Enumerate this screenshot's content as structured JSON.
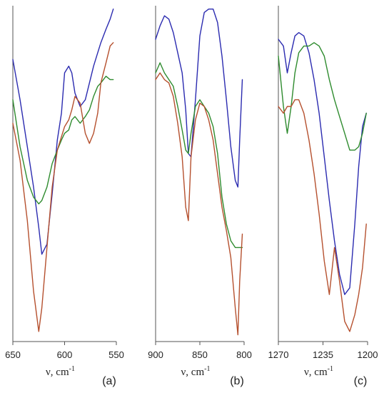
{
  "chart_data": [
    {
      "type": "line",
      "panel_label": "(a)",
      "xlabel": "ν, cm",
      "xlabel_sup": "-1",
      "xlim": [
        650,
        550
      ],
      "ylim": [
        0,
        1
      ],
      "xticks": [
        650,
        600,
        550
      ],
      "series": [
        {
          "color": "#2b2bb0",
          "x": [
            650,
            643,
            636,
            630,
            625,
            622,
            617,
            612,
            607,
            603,
            600,
            596,
            593,
            590,
            585,
            580,
            576,
            572,
            568,
            565,
            560,
            556,
            553
          ],
          "y": [
            0.84,
            0.72,
            0.58,
            0.46,
            0.34,
            0.26,
            0.29,
            0.44,
            0.6,
            0.68,
            0.8,
            0.82,
            0.8,
            0.74,
            0.7,
            0.72,
            0.77,
            0.82,
            0.86,
            0.89,
            0.93,
            0.96,
            0.99
          ]
        },
        {
          "color": "#2e8b2e",
          "x": [
            650,
            643,
            636,
            630,
            625,
            622,
            617,
            612,
            607,
            603,
            600,
            596,
            593,
            590,
            585,
            580,
            576,
            572,
            568,
            565,
            560,
            556,
            553
          ],
          "y": [
            0.72,
            0.58,
            0.48,
            0.43,
            0.41,
            0.42,
            0.46,
            0.53,
            0.57,
            0.6,
            0.62,
            0.63,
            0.66,
            0.67,
            0.65,
            0.67,
            0.69,
            0.73,
            0.76,
            0.77,
            0.79,
            0.78,
            0.78
          ]
        },
        {
          "color": "#b5502e",
          "x": [
            650,
            643,
            636,
            630,
            625,
            622,
            617,
            612,
            607,
            603,
            600,
            596,
            593,
            590,
            585,
            580,
            576,
            572,
            568,
            565,
            560,
            556,
            553
          ],
          "y": [
            0.65,
            0.54,
            0.36,
            0.15,
            0.03,
            0.1,
            0.28,
            0.46,
            0.57,
            0.61,
            0.64,
            0.66,
            0.69,
            0.73,
            0.71,
            0.62,
            0.59,
            0.62,
            0.68,
            0.77,
            0.83,
            0.88,
            0.89
          ]
        }
      ]
    },
    {
      "type": "line",
      "panel_label": "(b)",
      "xlabel": "ν, cm",
      "xlabel_sup": "-1",
      "xlim": [
        900,
        800
      ],
      "ylim": [
        0,
        1
      ],
      "xticks": [
        900,
        850,
        800
      ],
      "series": [
        {
          "color": "#2b2bb0",
          "x": [
            900,
            895,
            890,
            885,
            880,
            875,
            870,
            866,
            863,
            860,
            855,
            850,
            845,
            840,
            835,
            830,
            825,
            820,
            815,
            810,
            807,
            805,
            802
          ],
          "y": [
            0.9,
            0.94,
            0.97,
            0.96,
            0.92,
            0.86,
            0.8,
            0.69,
            0.56,
            0.55,
            0.72,
            0.91,
            0.98,
            0.99,
            0.99,
            0.95,
            0.85,
            0.72,
            0.58,
            0.48,
            0.46,
            0.6,
            0.78
          ]
        },
        {
          "color": "#2e8b2e",
          "x": [
            900,
            895,
            890,
            885,
            880,
            875,
            870,
            866,
            863,
            860,
            855,
            850,
            845,
            840,
            835,
            830,
            825,
            820,
            815,
            810,
            807,
            805,
            802
          ],
          "y": [
            0.8,
            0.83,
            0.8,
            0.78,
            0.76,
            0.7,
            0.63,
            0.57,
            0.56,
            0.62,
            0.7,
            0.72,
            0.7,
            0.68,
            0.64,
            0.56,
            0.43,
            0.35,
            0.3,
            0.28,
            0.28,
            0.28,
            0.28
          ]
        },
        {
          "color": "#b5502e",
          "x": [
            900,
            895,
            890,
            885,
            880,
            875,
            870,
            866,
            863,
            860,
            855,
            850,
            845,
            840,
            835,
            830,
            825,
            820,
            815,
            810,
            807,
            805,
            802
          ],
          "y": [
            0.78,
            0.8,
            0.78,
            0.77,
            0.73,
            0.65,
            0.55,
            0.4,
            0.36,
            0.55,
            0.66,
            0.71,
            0.7,
            0.66,
            0.6,
            0.5,
            0.4,
            0.33,
            0.25,
            0.1,
            0.02,
            0.18,
            0.32
          ]
        }
      ]
    },
    {
      "type": "line",
      "panel_label": "(c)",
      "xlabel": "ν, cm",
      "xlabel_sup": "-1",
      "xlim": [
        1270,
        1200
      ],
      "ylim": [
        0,
        1
      ],
      "xticks": [
        1270,
        1235,
        1200
      ],
      "series": [
        {
          "color": "#2b2bb0",
          "x": [
            1270,
            1266,
            1263,
            1260,
            1257,
            1254,
            1250,
            1246,
            1242,
            1238,
            1234,
            1230,
            1226,
            1222,
            1218,
            1214,
            1210,
            1207,
            1204,
            1201
          ],
          "y": [
            0.9,
            0.88,
            0.8,
            0.86,
            0.91,
            0.92,
            0.91,
            0.86,
            0.78,
            0.68,
            0.55,
            0.42,
            0.3,
            0.2,
            0.14,
            0.16,
            0.35,
            0.52,
            0.64,
            0.68
          ]
        },
        {
          "color": "#2e8b2e",
          "x": [
            1270,
            1266,
            1263,
            1260,
            1257,
            1254,
            1250,
            1246,
            1242,
            1238,
            1234,
            1230,
            1226,
            1222,
            1218,
            1214,
            1210,
            1207,
            1204,
            1201
          ],
          "y": [
            0.85,
            0.7,
            0.62,
            0.7,
            0.8,
            0.86,
            0.88,
            0.88,
            0.89,
            0.88,
            0.85,
            0.78,
            0.72,
            0.67,
            0.62,
            0.57,
            0.57,
            0.58,
            0.62,
            0.68
          ]
        },
        {
          "color": "#b5502e",
          "x": [
            1270,
            1266,
            1263,
            1260,
            1257,
            1254,
            1250,
            1246,
            1242,
            1238,
            1234,
            1230,
            1226,
            1222,
            1218,
            1214,
            1210,
            1207,
            1204,
            1201
          ],
          "y": [
            0.7,
            0.68,
            0.7,
            0.7,
            0.72,
            0.72,
            0.68,
            0.6,
            0.5,
            0.38,
            0.24,
            0.14,
            0.28,
            0.18,
            0.06,
            0.03,
            0.08,
            0.14,
            0.22,
            0.35
          ]
        }
      ]
    }
  ]
}
